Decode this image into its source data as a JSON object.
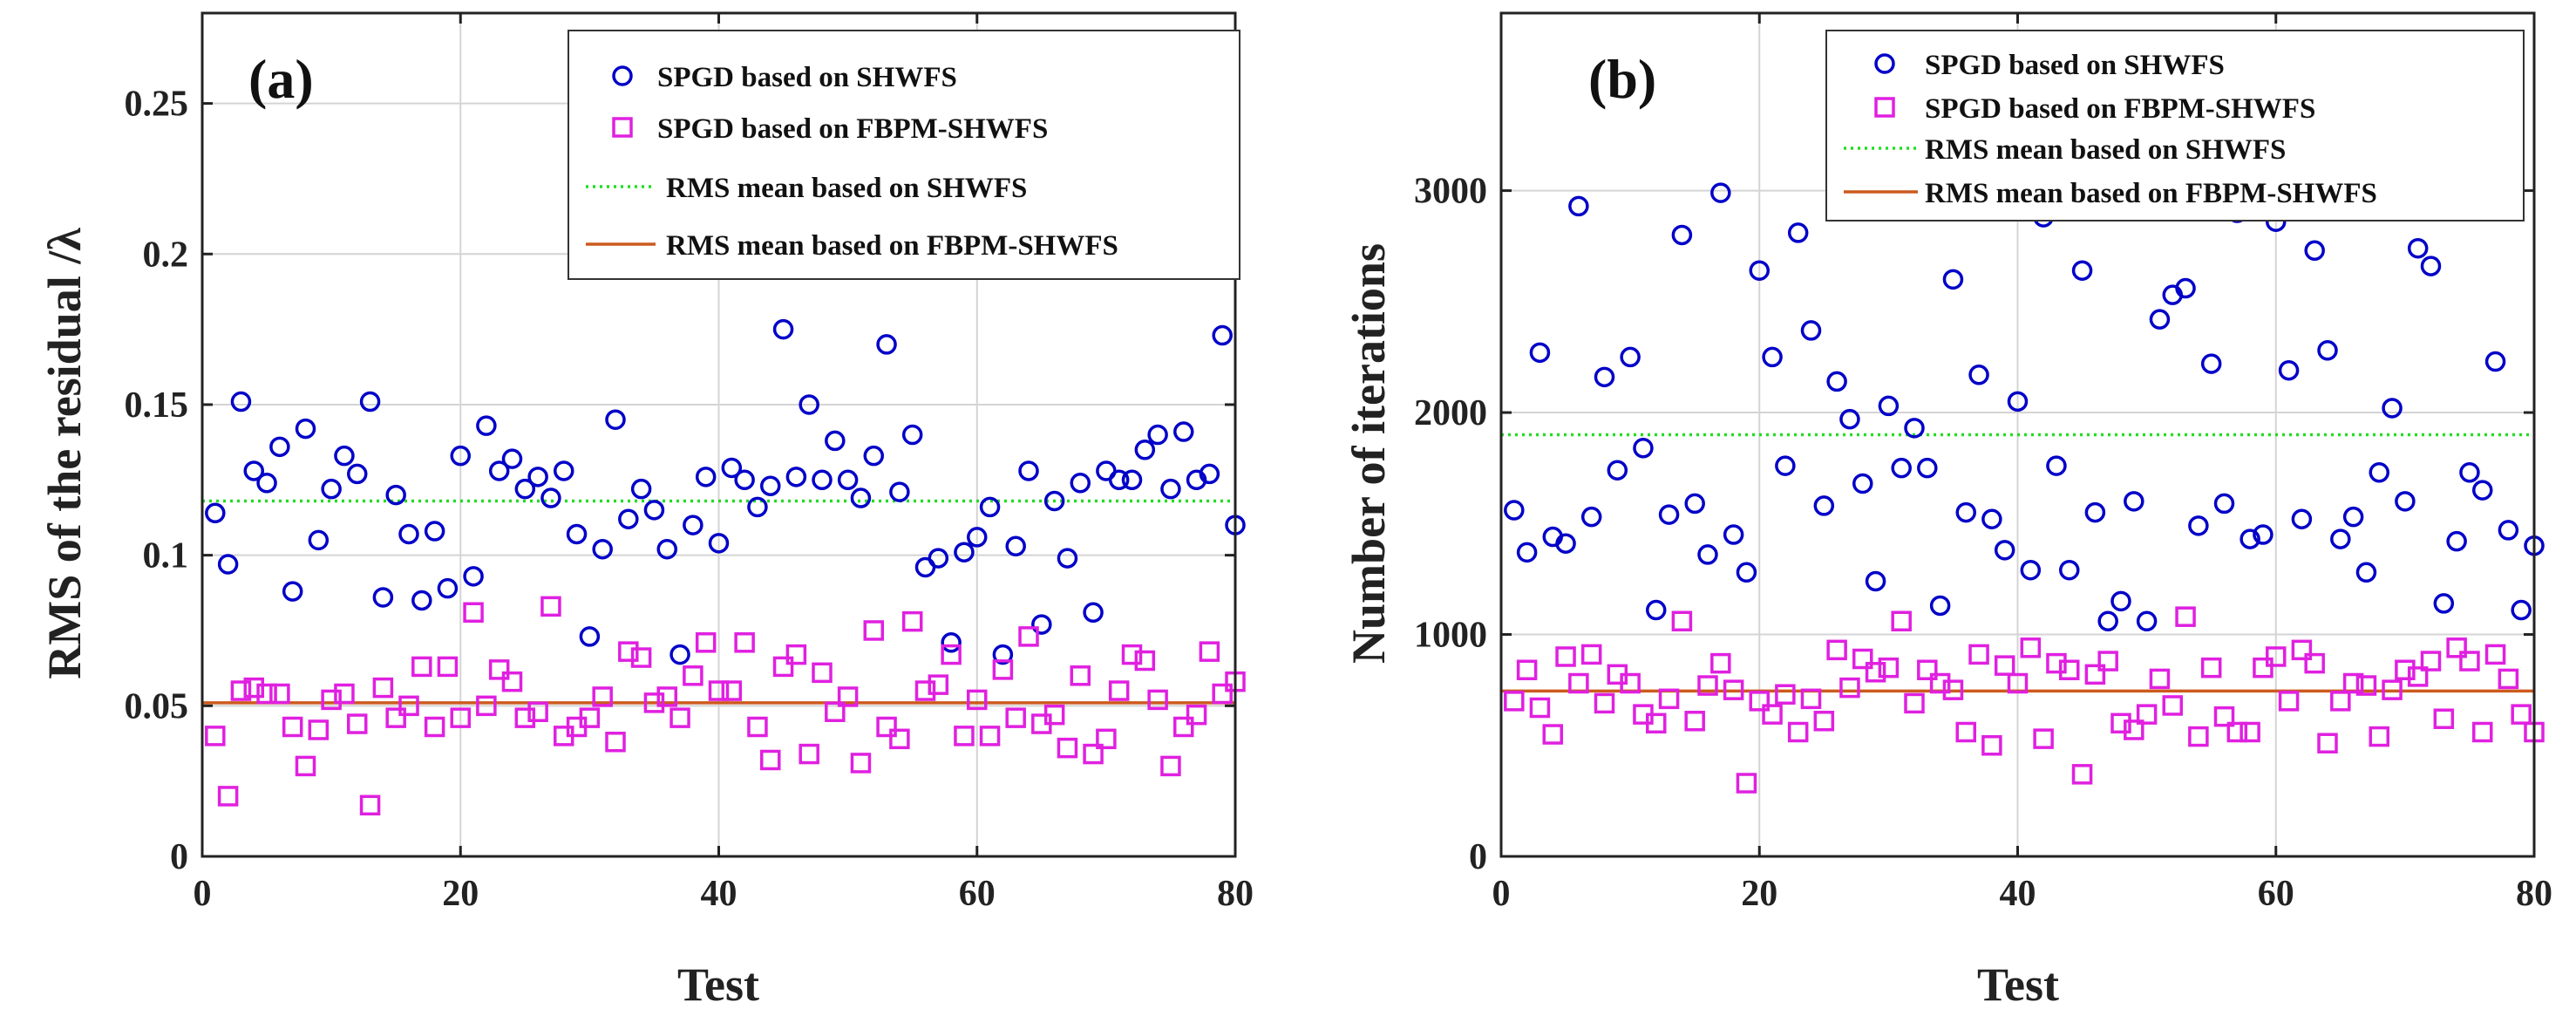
{
  "colors": {
    "series1": "#0000c8",
    "series2": "#e020e0",
    "mean1": "#22dd22",
    "mean2": "#cc5a1e"
  },
  "chart_data": [
    {
      "type": "scatter",
      "panel_label": "(a)",
      "xlabel": "Test",
      "ylabel": "RMS of the residual /λ",
      "xlim": [
        0,
        80
      ],
      "ylim": [
        0,
        0.28
      ],
      "xticks": [
        0,
        20,
        40,
        60,
        80
      ],
      "xtick_labels": [
        "0",
        "20",
        "40",
        "60",
        "80"
      ],
      "yticks": [
        0,
        0.05,
        0.1,
        0.15,
        0.2,
        0.25
      ],
      "ytick_labels": [
        "0",
        "0.05",
        "0.1",
        "0.15",
        "0.2",
        "0.25"
      ],
      "grid": true,
      "legend": [
        "SPGD based on SHWFS",
        "SPGD based on FBPM-SHWFS",
        "RMS mean based on SHWFS",
        "RMS mean based on FBPM-SHWFS"
      ],
      "legend_placement": "top-right",
      "x": [
        1,
        2,
        3,
        4,
        5,
        6,
        7,
        8,
        9,
        10,
        11,
        12,
        13,
        14,
        15,
        16,
        17,
        18,
        19,
        20,
        21,
        22,
        23,
        24,
        25,
        26,
        27,
        28,
        29,
        30,
        31,
        32,
        33,
        34,
        35,
        36,
        37,
        38,
        39,
        40,
        41,
        42,
        43,
        44,
        45,
        46,
        47,
        48,
        49,
        50,
        51,
        52,
        53,
        54,
        55,
        56,
        57,
        58,
        59,
        60,
        61,
        62,
        63,
        64,
        65,
        66,
        67,
        68,
        69,
        70,
        71,
        72,
        73,
        74,
        75,
        76,
        77,
        78,
        79,
        80
      ],
      "series": [
        {
          "name": "SPGD based on SHWFS",
          "marker": "circle",
          "values": [
            0.114,
            0.097,
            0.151,
            0.128,
            0.124,
            0.136,
            0.088,
            0.142,
            0.105,
            0.122,
            0.133,
            0.127,
            0.151,
            0.086,
            0.12,
            0.107,
            0.085,
            0.108,
            0.089,
            0.133,
            0.093,
            0.143,
            0.128,
            0.132,
            0.122,
            0.126,
            0.119,
            0.128,
            0.107,
            0.073,
            0.102,
            0.145,
            0.112,
            0.122,
            0.115,
            0.102,
            0.067,
            0.11,
            0.126,
            0.104,
            0.129,
            0.125,
            0.116,
            0.123,
            0.175,
            0.126,
            0.15,
            0.125,
            0.138,
            0.125,
            0.119,
            0.133,
            0.17,
            0.121,
            0.14,
            0.096,
            0.099,
            0.071,
            0.101,
            0.106,
            0.116,
            0.067,
            0.103,
            0.128,
            0.077,
            0.118,
            0.099,
            0.124,
            0.081,
            0.128,
            0.125,
            0.125,
            0.135,
            0.14,
            0.122,
            0.141,
            0.125,
            0.127,
            0.173,
            0.11
          ]
        },
        {
          "name": "SPGD based on FBPM-SHWFS",
          "marker": "square",
          "values": [
            0.04,
            0.02,
            0.055,
            0.056,
            0.054,
            0.054,
            0.043,
            0.03,
            0.042,
            0.052,
            0.054,
            0.044,
            0.017,
            0.056,
            0.046,
            0.05,
            0.063,
            0.043,
            0.063,
            0.046,
            0.081,
            0.05,
            0.062,
            0.058,
            0.046,
            0.048,
            0.083,
            0.04,
            0.043,
            0.046,
            0.053,
            0.038,
            0.068,
            0.066,
            0.051,
            0.053,
            0.046,
            0.06,
            0.071,
            0.055,
            0.055,
            0.071,
            0.043,
            0.032,
            0.063,
            0.067,
            0.034,
            0.061,
            0.048,
            0.053,
            0.031,
            0.075,
            0.043,
            0.039,
            0.078,
            0.055,
            0.057,
            0.067,
            0.04,
            0.052,
            0.04,
            0.062,
            0.046,
            0.073,
            0.044,
            0.047,
            0.036,
            0.06,
            0.034,
            0.039,
            0.055,
            0.067,
            0.065,
            0.052,
            0.03,
            0.043,
            0.047,
            0.068,
            0.054,
            0.058
          ]
        }
      ],
      "mean_lines": [
        {
          "name": "RMS mean based on SHWFS",
          "style": "dotted",
          "value": 0.118
        },
        {
          "name": "RMS mean based on FBPM-SHWFS",
          "style": "solid",
          "value": 0.051
        }
      ]
    },
    {
      "type": "scatter",
      "panel_label": "(b)",
      "xlabel": "Test",
      "ylabel": "Number of iterations",
      "xlim": [
        0,
        80
      ],
      "ylim": [
        0,
        3800
      ],
      "xticks": [
        0,
        20,
        40,
        60,
        80
      ],
      "xtick_labels": [
        "0",
        "20",
        "40",
        "60",
        "80"
      ],
      "yticks": [
        0,
        1000,
        2000,
        3000
      ],
      "ytick_labels": [
        "0",
        "1000",
        "2000",
        "3000"
      ],
      "grid": true,
      "legend": [
        "SPGD based on SHWFS",
        "SPGD based on FBPM-SHWFS",
        "RMS mean based on SHWFS",
        "RMS mean based on FBPM-SHWFS"
      ],
      "legend_placement": "top-right",
      "x": [
        1,
        2,
        3,
        4,
        5,
        6,
        7,
        8,
        9,
        10,
        11,
        12,
        13,
        14,
        15,
        16,
        17,
        18,
        19,
        20,
        21,
        22,
        23,
        24,
        25,
        26,
        27,
        28,
        29,
        30,
        31,
        32,
        33,
        34,
        35,
        36,
        37,
        38,
        39,
        40,
        41,
        42,
        43,
        44,
        45,
        46,
        47,
        48,
        49,
        50,
        51,
        52,
        53,
        54,
        55,
        56,
        57,
        58,
        59,
        60,
        61,
        62,
        63,
        64,
        65,
        66,
        67,
        68,
        69,
        70,
        71,
        72,
        73,
        74,
        75,
        76,
        77,
        78,
        79,
        80
      ],
      "series": [
        {
          "name": "SPGD based on SHWFS",
          "marker": "circle",
          "values": [
            1560,
            1370,
            2270,
            1440,
            1410,
            2930,
            1530,
            2160,
            1740,
            2250,
            1840,
            1110,
            1540,
            2800,
            1590,
            1360,
            2990,
            1450,
            1280,
            2640,
            2250,
            1760,
            2810,
            2370,
            1580,
            2140,
            1970,
            1680,
            1240,
            2030,
            1750,
            1930,
            1750,
            1130,
            2600,
            1550,
            2170,
            1520,
            1380,
            2050,
            1290,
            2880,
            1760,
            1290,
            2640,
            1550,
            1060,
            1150,
            1600,
            1060,
            2420,
            2530,
            2560,
            1490,
            2220,
            1590,
            2900,
            1430,
            1450,
            2860,
            2190,
            1520,
            2730,
            2280,
            1430,
            1530,
            1280,
            1730,
            2020,
            1600,
            2740,
            2660,
            1140,
            1420,
            1730,
            1650,
            2230,
            1470,
            1110,
            1400
          ]
        },
        {
          "name": "SPGD based on FBPM-SHWFS",
          "marker": "square",
          "values": [
            700,
            840,
            670,
            550,
            900,
            780,
            910,
            690,
            820,
            780,
            640,
            600,
            710,
            1060,
            610,
            770,
            870,
            750,
            330,
            700,
            640,
            730,
            560,
            710,
            610,
            930,
            760,
            890,
            830,
            850,
            1060,
            690,
            840,
            780,
            750,
            560,
            910,
            500,
            860,
            780,
            940,
            530,
            870,
            840,
            370,
            820,
            880,
            600,
            570,
            640,
            800,
            680,
            1080,
            540,
            850,
            630,
            560,
            560,
            850,
            900,
            700,
            930,
            870,
            510,
            700,
            780,
            770,
            540,
            750,
            840,
            810,
            880,
            620,
            940,
            880,
            560,
            910,
            800,
            640,
            560
          ]
        }
      ],
      "mean_lines": [
        {
          "name": "RMS mean based on SHWFS",
          "style": "dotted",
          "value": 1900
        },
        {
          "name": "RMS mean based on FBPM-SHWFS",
          "style": "solid",
          "value": 745
        }
      ]
    }
  ]
}
